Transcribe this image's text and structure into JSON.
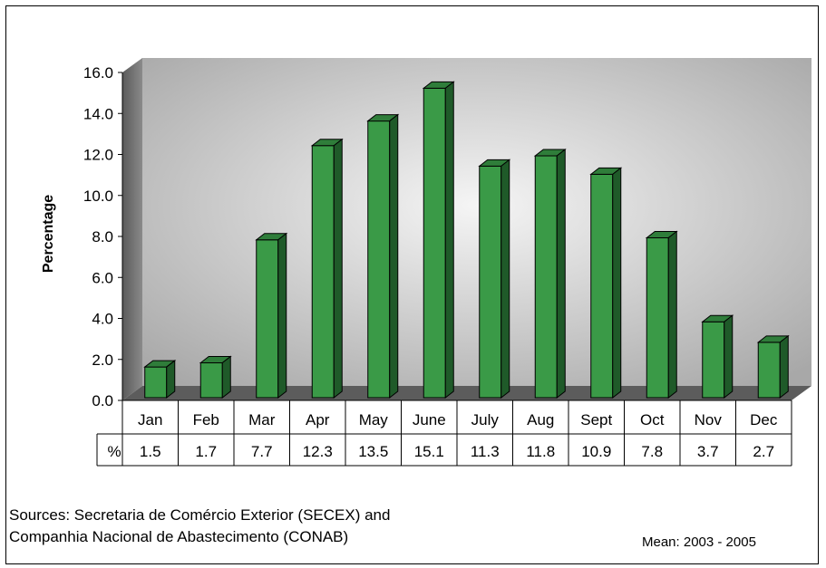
{
  "chart_data": {
    "type": "bar",
    "ylabel": "Percentage",
    "ylim": [
      0,
      16
    ],
    "ytick_step": 2,
    "ytick_labels": [
      "0.0",
      "2.0",
      "4.0",
      "6.0",
      "8.0",
      "10.0",
      "12.0",
      "14.0",
      "16.0"
    ],
    "categories": [
      "Jan",
      "Feb",
      "Mar",
      "Apr",
      "May",
      "June",
      "July",
      "Aug",
      "Sept",
      "Oct",
      "Nov",
      "Dec"
    ],
    "values": [
      1.5,
      1.7,
      7.7,
      12.3,
      13.5,
      15.1,
      11.3,
      11.8,
      10.9,
      7.8,
      3.7,
      2.7
    ],
    "value_labels": [
      "1.5",
      "1.7",
      "7.7",
      "12.3",
      "13.5",
      "15.1",
      "11.3",
      "11.8",
      "10.9",
      "7.8",
      "3.7",
      "2.7"
    ],
    "table_row_label": "%",
    "bar_color": "#3a9a47",
    "grid": false
  },
  "footer": {
    "source_line1": "Sources: Secretaria de Comércio Exterior (SECEX) and",
    "source_line2": "Companhia Nacional de Abastecimento (CONAB)",
    "mean": "Mean: 2003 - 2005"
  }
}
